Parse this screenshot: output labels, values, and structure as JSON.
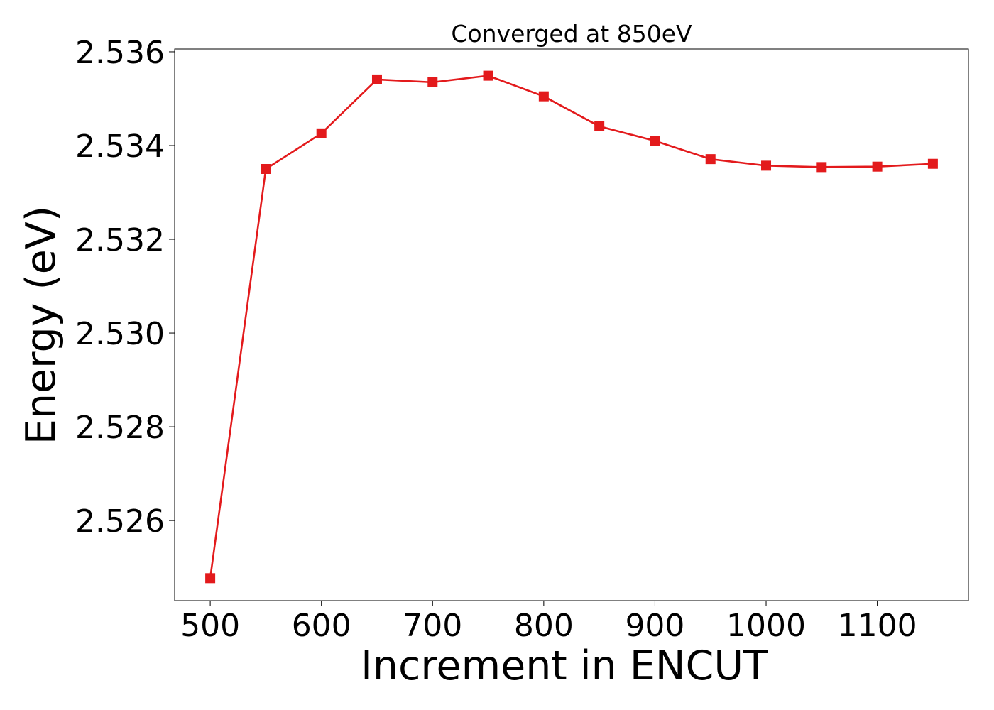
{
  "chart_data": {
    "type": "line",
    "title": "Converged at 850eV",
    "xlabel": "Increment in ENCUT",
    "ylabel": "Energy (eV)",
    "xlim": [
      468,
      1182
    ],
    "ylim": [
      2.52429,
      2.53606
    ],
    "xticks": [
      500,
      600,
      700,
      800,
      900,
      1000,
      1100
    ],
    "yticks": [
      2.526,
      2.528,
      2.53,
      2.532,
      2.534,
      2.536
    ],
    "ytick_labels": [
      "2.526",
      "2.528",
      "2.530",
      "2.532",
      "2.534",
      "2.536"
    ],
    "grid": false,
    "legend": false,
    "series": [
      {
        "color": "#e31a1c",
        "marker": "square",
        "x": [
          500,
          550,
          600,
          650,
          700,
          750,
          800,
          850,
          900,
          950,
          1000,
          1050,
          1100,
          1150
        ],
        "y": [
          2.52477,
          2.5335,
          2.53426,
          2.53541,
          2.53535,
          2.53549,
          2.53505,
          2.53441,
          2.5341,
          2.53371,
          2.53357,
          2.53354,
          2.53355,
          2.53361
        ]
      }
    ]
  }
}
